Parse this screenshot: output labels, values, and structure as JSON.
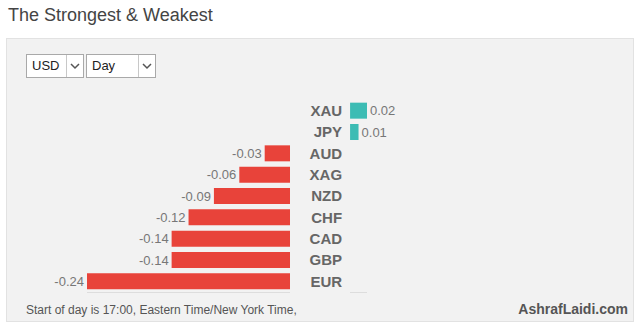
{
  "header": {
    "title": "The Strongest & Weakest",
    "controls": [
      "USD",
      "Day"
    ]
  },
  "chart_data": {
    "type": "bar",
    "orientation": "horizontal",
    "categories": [
      "XAU",
      "JPY",
      "AUD",
      "XAG",
      "NZD",
      "CHF",
      "CAD",
      "GBP",
      "EUR"
    ],
    "values": [
      0.02,
      0.01,
      -0.03,
      -0.06,
      -0.09,
      -0.12,
      -0.14,
      -0.14,
      -0.24
    ],
    "colors": [
      "#3cbcb4",
      "#3cbcb4",
      "#e8433a",
      "#e8433a",
      "#e8433a",
      "#e8433a",
      "#e8433a",
      "#e8433a",
      "#e8433a"
    ],
    "xlim": [
      -0.24,
      0.02
    ],
    "data_labels": true,
    "tick_labels": "y"
  },
  "footer": {
    "note": "Start of day is 17:00, Eastern Time/New York Time,",
    "brand": "AshrafLaidi.com"
  }
}
